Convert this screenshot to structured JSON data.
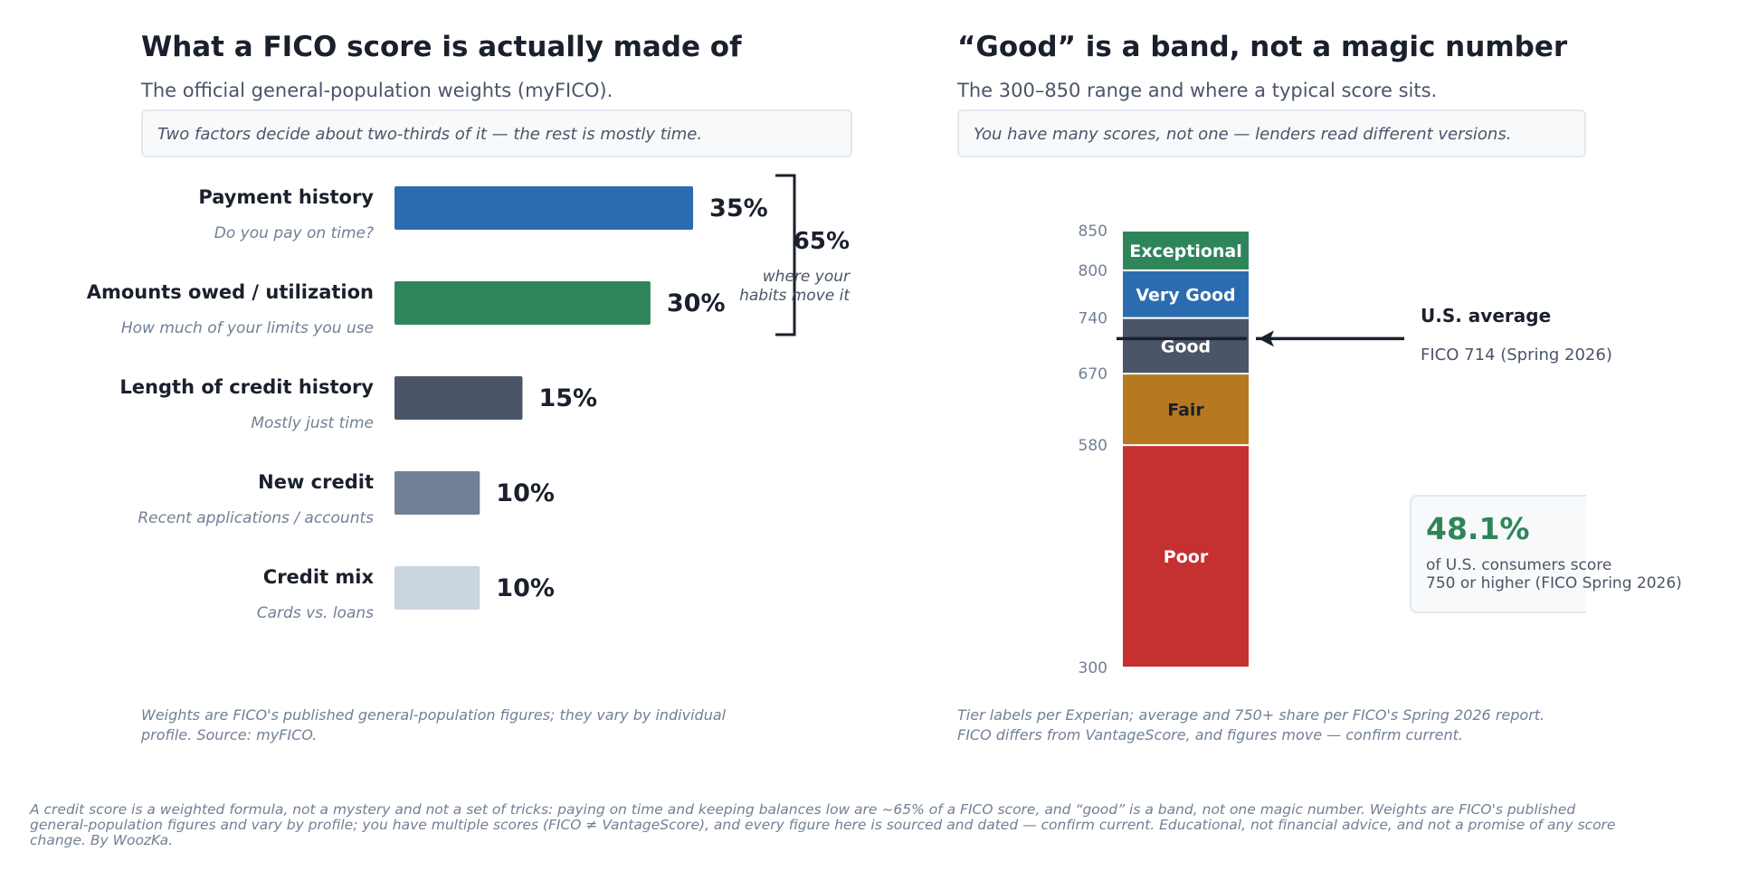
{
  "left_panel": {
    "title": "What a FICO score is actually made of",
    "subtitle": "The official general-population weights (myFICO).",
    "callout": "Two factors decide about two-thirds of it — the rest is mostly time.",
    "bracket_value": "65%",
    "bracket_caption": [
      "where your",
      "habits move it"
    ],
    "footnote": [
      "Weights are FICO's published general-population figures; they vary by individual",
      "profile. Source: myFICO."
    ]
  },
  "right_panel": {
    "title": "“Good” is a band, not a magic number",
    "subtitle": "The 300–850 range and where a typical score sits.",
    "callout": "You have many scores, not one — lenders read different versions.",
    "average_label": "U.S. average",
    "average_detail": "FICO 714 (Spring 2026)",
    "stat_value": "48.1%",
    "stat_text": [
      "of U.S. consumers score",
      "750 or higher (FICO Spring 2026)"
    ],
    "footnote": [
      "Tier labels per Experian; average and 750+ share per FICO's Spring 2026 report.",
      "FICO differs from VantageScore, and figures move — confirm current."
    ]
  },
  "bottom_note": [
    "A credit score is a weighted formula, not a mystery and not a set of tricks: paying on time and keeping balances low are ~65% of a FICO score, and “good” is a band, not one magic number. Weights are FICO's published",
    "general-population figures and vary by profile; you have multiple scores (FICO ≠ VantageScore), and every figure here is sourced and dated — confirm current. Educational, not financial advice, and not a promise of any score",
    "change. By WoozKa."
  ],
  "chart_data": [
    {
      "type": "bar",
      "orientation": "horizontal",
      "title": "What a FICO score is actually made of",
      "categories": [
        "Payment history",
        "Amounts owed / utilization",
        "Length of credit history",
        "New credit",
        "Credit mix"
      ],
      "sublabels": [
        "Do you pay on time?",
        "How much of your limits you use",
        "Mostly just time",
        "Recent applications / accounts",
        "Cards vs. loans"
      ],
      "values": [
        35,
        30,
        15,
        10,
        10
      ],
      "value_labels": [
        "35%",
        "30%",
        "15%",
        "10%",
        "10%"
      ],
      "colors": [
        "#2b6cb0",
        "#2f855a",
        "#4a5568",
        "#718096",
        "#cbd5e0"
      ],
      "unit": "%",
      "grid": false
    },
    {
      "type": "bar",
      "orientation": "vertical-stacked",
      "title": "“Good” is a band, not a magic number",
      "ylim": [
        300,
        850
      ],
      "ticks": [
        300,
        580,
        670,
        740,
        800,
        850
      ],
      "bands": [
        {
          "name": "Poor",
          "from": 300,
          "to": 580,
          "color": "#c53030",
          "text_color": "#ffffff"
        },
        {
          "name": "Fair",
          "from": 580,
          "to": 670,
          "color": "#b7791f",
          "text_color": "#1a202c"
        },
        {
          "name": "Good",
          "from": 670,
          "to": 740,
          "color": "#4a5568",
          "text_color": "#ffffff"
        },
        {
          "name": "Very Good",
          "from": 740,
          "to": 800,
          "color": "#2b6cb0",
          "text_color": "#ffffff"
        },
        {
          "name": "Exceptional",
          "from": 800,
          "to": 850,
          "color": "#2f855a",
          "text_color": "#ffffff"
        }
      ],
      "marker": {
        "label": "U.S. average",
        "value": 714
      },
      "grid": false
    }
  ]
}
